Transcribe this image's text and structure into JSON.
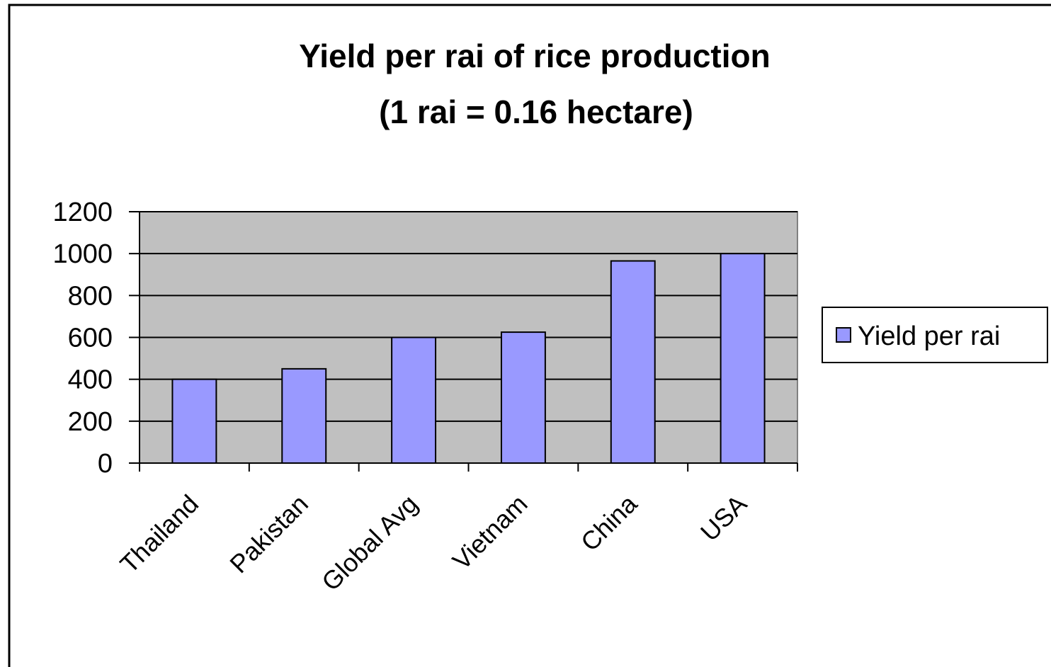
{
  "chart_data": {
    "type": "bar",
    "title": "Yield per rai of rice production",
    "subtitle": "(1 rai = 0.16 hectare)",
    "categories": [
      "Thailand",
      "Pakistan",
      "Global Avg",
      "Vietnam",
      "China",
      "USA"
    ],
    "series": [
      {
        "name": "Yield per rai",
        "color": "#9999ff",
        "values": [
          400,
          450,
          600,
          625,
          965,
          1000
        ]
      }
    ],
    "ylim": [
      0,
      1200
    ],
    "yticks": [
      0,
      200,
      400,
      600,
      800,
      1000,
      1200
    ],
    "grid": true,
    "legend": "right"
  }
}
